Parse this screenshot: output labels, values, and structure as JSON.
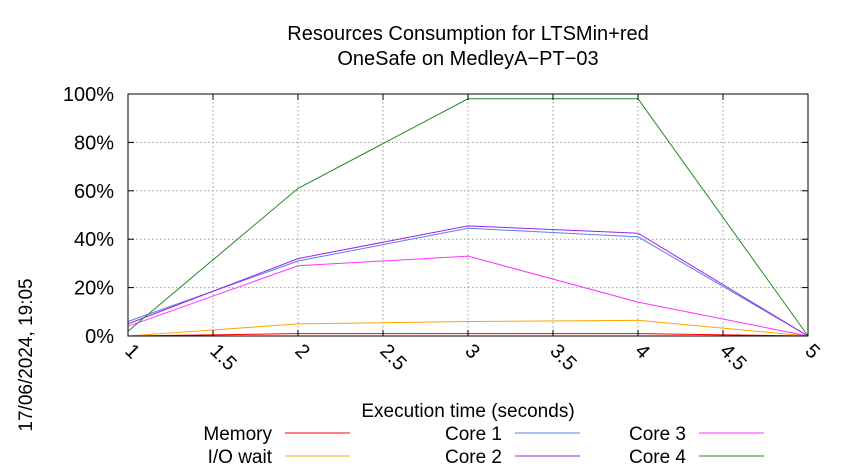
{
  "chart_data": {
    "type": "line",
    "title": "Resources Consumption for LTSMin+red",
    "subtitle": "OneSafe on MedleyA−PT−03",
    "xlabel": "Execution time (seconds)",
    "ylabel": "",
    "xlim": [
      1,
      5
    ],
    "ylim": [
      0,
      100
    ],
    "x_ticks": [
      1,
      1.5,
      2,
      2.5,
      3,
      3.5,
      4,
      4.5,
      5
    ],
    "x_tick_labels": [
      "1",
      "1.5",
      "2",
      "2.5",
      "3",
      "3.5",
      "4",
      "4.5",
      "5"
    ],
    "y_ticks": [
      0,
      20,
      40,
      60,
      80,
      100
    ],
    "y_tick_labels": [
      "0%",
      "20%",
      "40%",
      "60%",
      "80%",
      "100%"
    ],
    "grid": true,
    "legend_position": "bottom",
    "timestamp": "17/06/2024, 19:05",
    "x": [
      1,
      2,
      3,
      4,
      5
    ],
    "series": [
      {
        "name": "Memory",
        "color": "#ff0000",
        "values": [
          0,
          1,
          1,
          1,
          0
        ]
      },
      {
        "name": "I/O wait",
        "color": "#ffa500",
        "values": [
          0,
          5,
          6,
          6.5,
          0
        ]
      },
      {
        "name": "Core 1",
        "color": "#5b7fe8",
        "values": [
          6,
          31,
          44.5,
          41,
          0
        ]
      },
      {
        "name": "Core 2",
        "color": "#a020f0",
        "values": [
          5,
          32,
          45.5,
          42.5,
          0
        ]
      },
      {
        "name": "Core 3",
        "color": "#ff33ff",
        "values": [
          4,
          29,
          33,
          14,
          0
        ]
      },
      {
        "name": "Core 4",
        "color": "#228b22",
        "values": [
          2,
          61,
          98,
          98,
          0
        ]
      }
    ]
  }
}
